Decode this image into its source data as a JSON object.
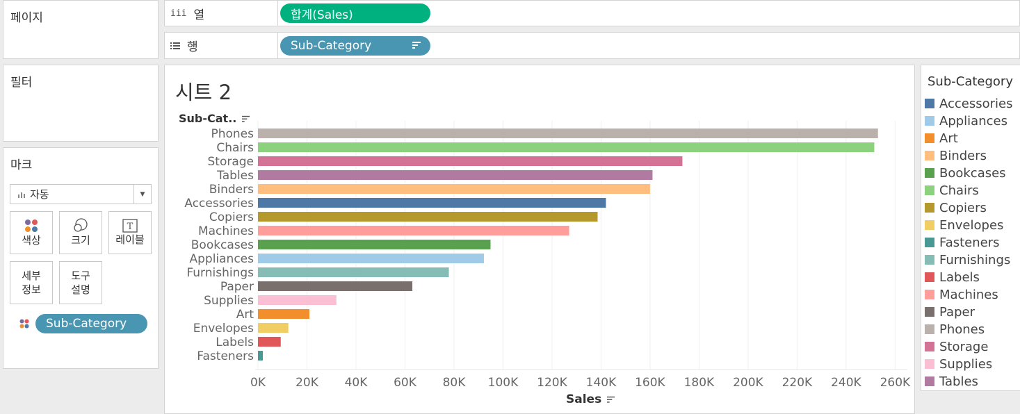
{
  "pages_panel": {
    "title": "페이지"
  },
  "filters_panel": {
    "title": "필터"
  },
  "marks_panel": {
    "title": "마크",
    "mark_type": "자동",
    "buttons": {
      "color": "색상",
      "size": "크기",
      "label": "레이블",
      "detail_1": "세부",
      "detail_2": "정보",
      "tooltip_1": "도구",
      "tooltip_2": "설명"
    },
    "color_pill": "Sub-Category"
  },
  "columns_shelf": {
    "label": "열",
    "icon": "iii",
    "pill": "합계(Sales)"
  },
  "rows_shelf": {
    "label": "행",
    "pill": "Sub-Category"
  },
  "sheet": {
    "title": "시트 2",
    "row_header": "Sub-Cat.."
  },
  "legend": {
    "title": "Sub-Category",
    "items": [
      {
        "name": "Accessories",
        "color": "#4e79a7"
      },
      {
        "name": "Appliances",
        "color": "#a0cbe8"
      },
      {
        "name": "Art",
        "color": "#f28e2b"
      },
      {
        "name": "Binders",
        "color": "#ffbe7d"
      },
      {
        "name": "Bookcases",
        "color": "#59a14f"
      },
      {
        "name": "Chairs",
        "color": "#8cd17d"
      },
      {
        "name": "Copiers",
        "color": "#b6992d"
      },
      {
        "name": "Envelopes",
        "color": "#f1ce63"
      },
      {
        "name": "Fasteners",
        "color": "#499894"
      },
      {
        "name": "Furnishings",
        "color": "#86bcb6"
      },
      {
        "name": "Labels",
        "color": "#e15759"
      },
      {
        "name": "Machines",
        "color": "#ff9d9a"
      },
      {
        "name": "Paper",
        "color": "#79706e"
      },
      {
        "name": "Phones",
        "color": "#bab0ac"
      },
      {
        "name": "Storage",
        "color": "#d37295"
      },
      {
        "name": "Supplies",
        "color": "#fabfd2"
      },
      {
        "name": "Tables",
        "color": "#b07aa1"
      }
    ]
  },
  "chart_data": {
    "type": "bar",
    "orientation": "horizontal",
    "xlabel": "Sales",
    "xlim": [
      0,
      265000
    ],
    "x_ticks": [
      0,
      20000,
      40000,
      60000,
      80000,
      100000,
      120000,
      140000,
      160000,
      180000,
      200000,
      220000,
      240000,
      260000
    ],
    "x_tick_labels": [
      "0K",
      "20K",
      "40K",
      "60K",
      "80K",
      "100K",
      "120K",
      "140K",
      "160K",
      "180K",
      "200K",
      "220K",
      "240K",
      "260K"
    ],
    "grid": "vertical",
    "categories": [
      "Phones",
      "Chairs",
      "Storage",
      "Tables",
      "Binders",
      "Accessories",
      "Copiers",
      "Machines",
      "Bookcases",
      "Appliances",
      "Furnishings",
      "Paper",
      "Supplies",
      "Art",
      "Envelopes",
      "Labels",
      "Fasteners"
    ],
    "values": [
      253000,
      251500,
      173200,
      161000,
      160000,
      142000,
      138600,
      127000,
      94900,
      92200,
      77900,
      63000,
      32000,
      21000,
      12400,
      9300,
      2000
    ],
    "colors": [
      "#bab0ac",
      "#8cd17d",
      "#d37295",
      "#b07aa1",
      "#ffbe7d",
      "#4e79a7",
      "#b6992d",
      "#ff9d9a",
      "#59a14f",
      "#a0cbe8",
      "#86bcb6",
      "#79706e",
      "#fabfd2",
      "#f28e2b",
      "#f1ce63",
      "#e15759",
      "#499894"
    ]
  }
}
